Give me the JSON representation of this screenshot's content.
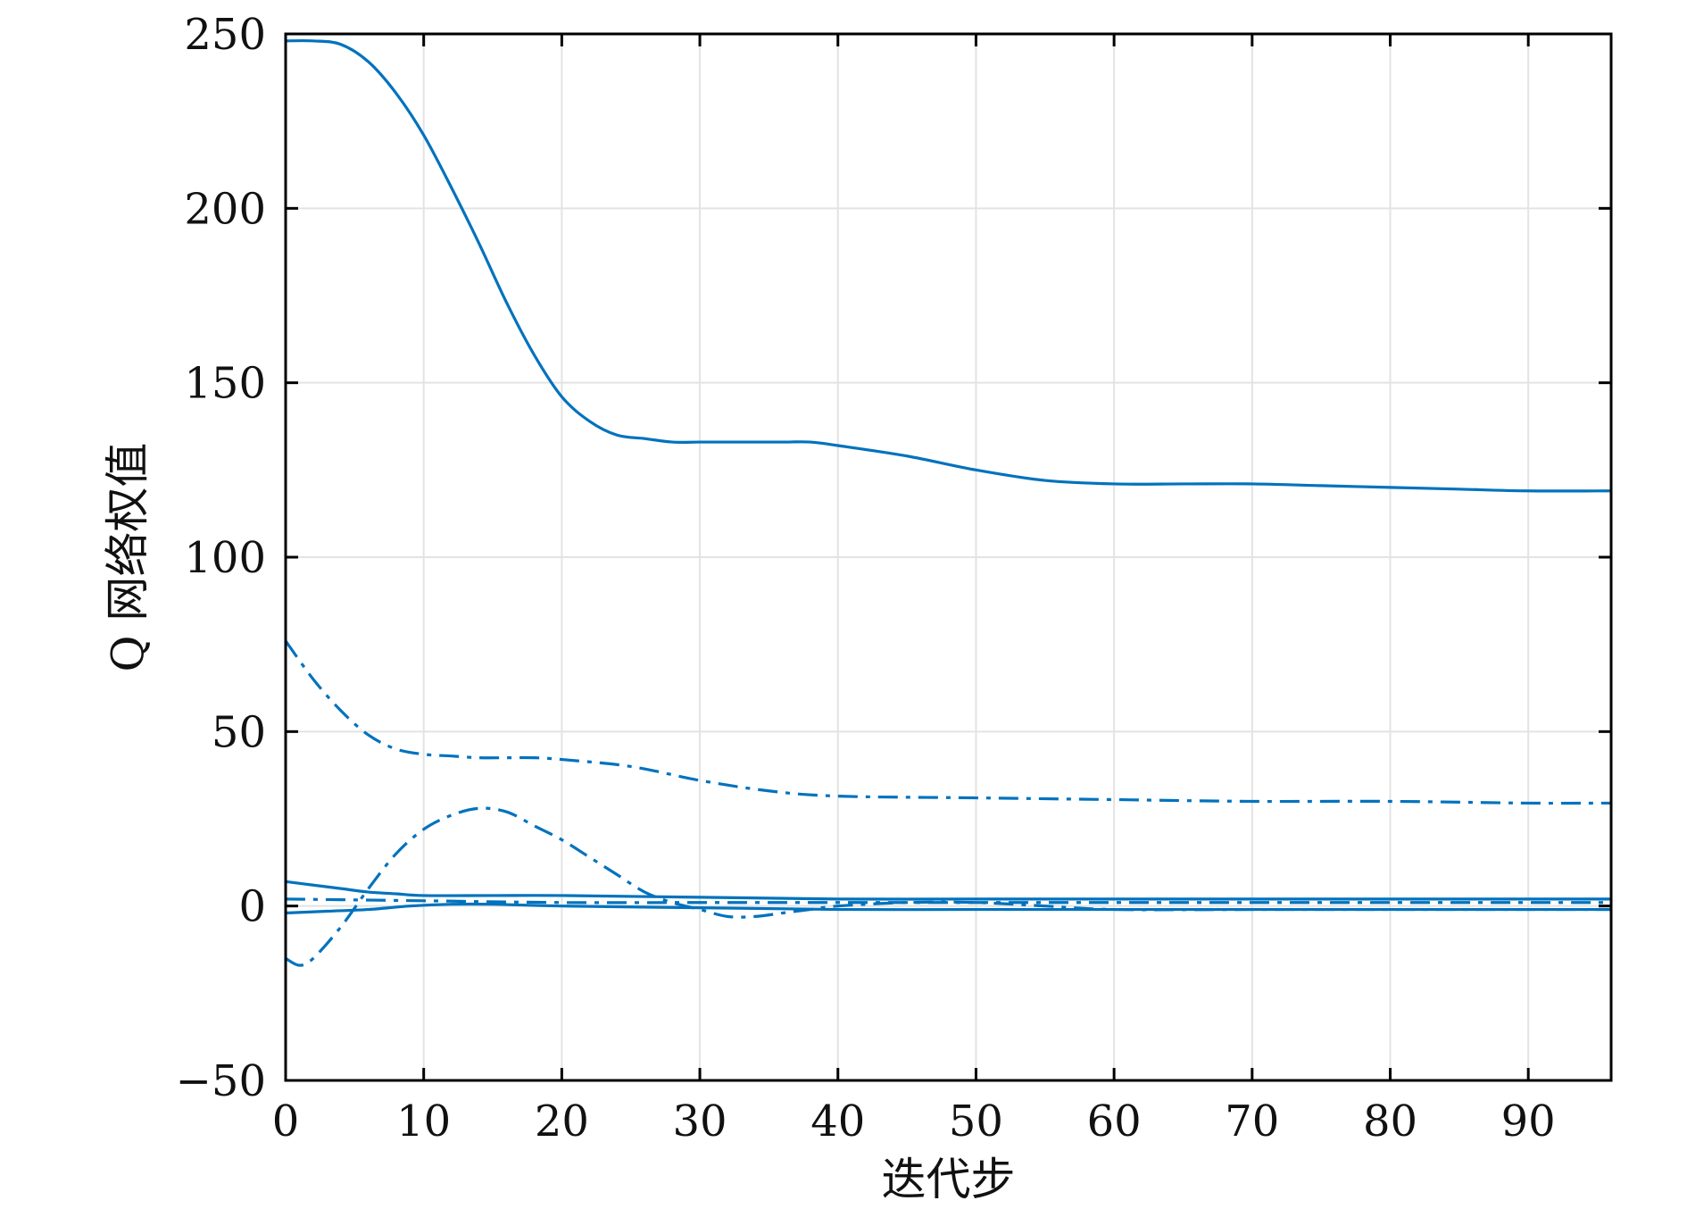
{
  "chart_data": {
    "type": "line",
    "title": "",
    "xlabel": "迭代步",
    "ylabel": "Q 网络权值",
    "xlim": [
      0,
      96
    ],
    "ylim": [
      -50,
      250
    ],
    "xticks": [
      0,
      10,
      20,
      30,
      40,
      50,
      60,
      70,
      80,
      90
    ],
    "yticks": [
      -50,
      0,
      50,
      100,
      150,
      200,
      250
    ],
    "ytick_labels": [
      "−50",
      "0",
      "50",
      "100",
      "150",
      "200",
      "250"
    ],
    "grid": true,
    "legend": "none",
    "line_color": "#0072BD",
    "series": [
      {
        "style": "solid",
        "x": [
          0,
          2,
          4,
          6,
          8,
          10,
          12,
          14,
          16,
          18,
          20,
          22,
          24,
          26,
          28,
          30,
          32,
          34,
          36,
          38,
          40,
          45,
          50,
          55,
          60,
          65,
          70,
          75,
          80,
          85,
          90,
          96
        ],
        "y": [
          248,
          248,
          247,
          242,
          233,
          221,
          206,
          190,
          173,
          158,
          146,
          139,
          135,
          134,
          133,
          133,
          133,
          133,
          133,
          133,
          132,
          129,
          125,
          122,
          121,
          121,
          121,
          120.5,
          120,
          119.5,
          119,
          119
        ]
      },
      {
        "style": "dash-dot",
        "x": [
          0,
          2,
          4,
          6,
          8,
          10,
          12,
          14,
          16,
          18,
          20,
          25,
          30,
          35,
          40,
          50,
          60,
          70,
          80,
          90,
          96
        ],
        "y": [
          76,
          65,
          56,
          49,
          45,
          43.5,
          43,
          42.5,
          42.5,
          42.5,
          42,
          40,
          36,
          33,
          31.5,
          31,
          30.5,
          30,
          30,
          29.5,
          29.5
        ]
      },
      {
        "style": "dash-dot",
        "x": [
          0,
          1,
          2,
          4,
          6,
          8,
          10,
          12,
          14,
          16,
          18,
          20,
          22,
          24,
          26,
          28,
          30,
          32,
          34,
          36,
          38,
          40,
          45,
          50,
          55,
          60,
          70,
          80,
          90,
          96
        ],
        "y": [
          -15,
          -17,
          -15,
          -6,
          5,
          15,
          22,
          26,
          28,
          27,
          23,
          19,
          14,
          9,
          4,
          1,
          -1,
          -3,
          -3,
          -2,
          -1,
          0,
          1,
          1,
          0,
          -1,
          -1,
          -1,
          -1,
          -1
        ]
      },
      {
        "style": "solid",
        "x": [
          0,
          2,
          4,
          6,
          8,
          10,
          15,
          20,
          30,
          40,
          50,
          60,
          70,
          80,
          90,
          96
        ],
        "y": [
          7,
          6,
          5,
          4,
          3.5,
          3,
          3,
          3,
          2.5,
          2,
          2,
          2,
          2,
          2,
          2,
          2
        ]
      },
      {
        "style": "dash-dot",
        "x": [
          0,
          10,
          20,
          30,
          40,
          50,
          60,
          70,
          80,
          90,
          96
        ],
        "y": [
          2,
          1.5,
          1,
          1,
          1,
          1,
          1,
          1,
          1,
          1,
          1
        ]
      },
      {
        "style": "solid",
        "x": [
          0,
          3,
          6,
          9,
          12,
          15,
          20,
          30,
          40,
          50,
          60,
          70,
          80,
          90,
          96
        ],
        "y": [
          -2,
          -1.5,
          -1,
          0,
          0.5,
          0.5,
          0,
          -0.5,
          -1,
          -1,
          -1,
          -1,
          -1,
          -1,
          -1
        ]
      }
    ]
  }
}
